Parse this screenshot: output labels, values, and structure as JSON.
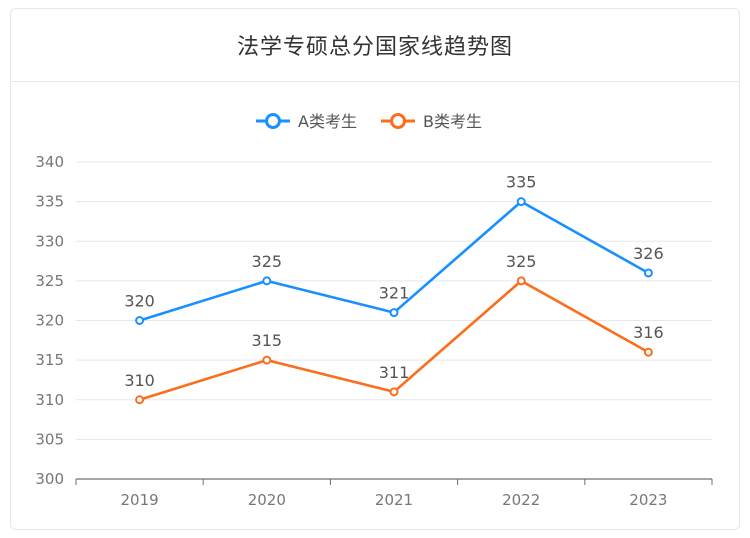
{
  "page": {
    "title": "法学专硕总分国家线趋势图"
  },
  "chart_data": {
    "type": "line",
    "title": "法学专硕总分国家线趋势图",
    "categories": [
      "2019",
      "2020",
      "2021",
      "2022",
      "2023"
    ],
    "series": [
      {
        "name": "A类考生",
        "values": [
          320,
          325,
          321,
          335,
          326
        ],
        "color": "#1890ff"
      },
      {
        "name": "B类考生",
        "values": [
          310,
          315,
          311,
          325,
          316
        ],
        "color": "#fa6e1e"
      }
    ],
    "ylim": [
      300,
      340
    ],
    "yticks": [
      300,
      305,
      310,
      315,
      320,
      325,
      330,
      335,
      340
    ],
    "grid": true,
    "legend": "top-center",
    "data_labels": true
  }
}
